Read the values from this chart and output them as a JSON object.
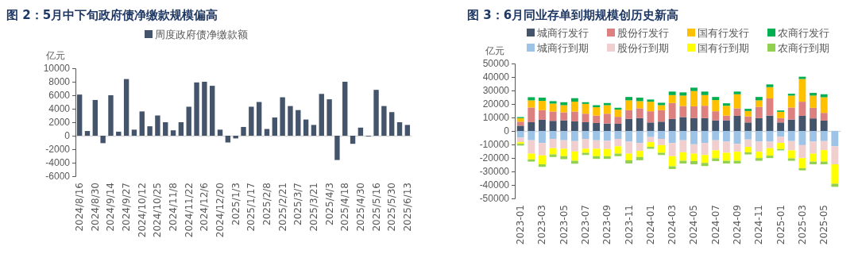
{
  "chart_data": [
    {
      "type": "bar",
      "title": "图 2：5月中下旬政府债净缴款规模偏高",
      "ylabel": "亿元",
      "legend": "top",
      "categories": [
        "2024/8/16",
        null,
        "2024/8/30",
        null,
        "2024/9/14",
        null,
        "2024/9/27",
        null,
        "2024/10/12",
        null,
        "2024/10/25",
        null,
        "2024/11/8",
        null,
        "2024/11/22",
        null,
        "2024/12/6",
        null,
        "2024/12/20",
        null,
        "2025/1/3",
        null,
        "2025/1/17",
        null,
        "2025/2/8",
        null,
        "2025/2/21",
        null,
        "2025/3/7",
        null,
        "2025/3/21",
        null,
        "2025/4/3",
        null,
        "2025/4/18",
        null,
        "2025/4/30",
        null,
        "2025/5/16",
        null,
        "2025/5/30",
        null,
        "2025/6/13"
      ],
      "series": [
        {
          "name": "周度政府债净缴款额",
          "color": "#44546a",
          "values": [
            6100,
            700,
            5300,
            -1100,
            6000,
            600,
            8400,
            900,
            3600,
            1400,
            3000,
            2000,
            800,
            2000,
            4300,
            7900,
            8000,
            7400,
            900,
            -1000,
            -400,
            1300,
            4300,
            5000,
            1000,
            2700,
            5700,
            4400,
            3800,
            2400,
            1600,
            6200,
            5400,
            -3600,
            8000,
            -1200,
            1200,
            -100,
            6800,
            4400,
            3500,
            2000,
            1600
          ]
        }
      ],
      "ylim": [
        -6000,
        10000
      ],
      "yticks": [
        -6000,
        -4000,
        -2000,
        0,
        2000,
        4000,
        6000,
        8000,
        10000
      ]
    },
    {
      "type": "bar",
      "title": "图 3：6月同业存单到期规模创历史新高",
      "ylabel": "亿元",
      "legend": "top",
      "stacked": true,
      "categories": [
        "2023-01",
        null,
        "2023-03",
        null,
        "2023-05",
        null,
        "2023-07",
        null,
        "2023-09",
        null,
        "2023-11",
        null,
        "2024-01",
        null,
        "2024-03",
        null,
        "2024-05",
        null,
        "2024-07",
        null,
        "2024-09",
        null,
        "2024-11",
        null,
        "2025-01",
        null,
        "2025-03",
        null,
        "2025-05",
        null
      ],
      "series": [
        {
          "name": "城商行发行",
          "color": "#44546a",
          "values": [
            3900,
            6500,
            8300,
            7500,
            7900,
            7100,
            6500,
            5900,
            5500,
            5300,
            8900,
            9500,
            6300,
            6900,
            8900,
            10300,
            9500,
            9500,
            7900,
            7900,
            11200,
            6300,
            9500,
            11400,
            6300,
            8500,
            11200,
            9300,
            7700,
            0
          ]
        },
        {
          "name": "股份行发行",
          "color": "#dc8080",
          "values": [
            3000,
            10900,
            7100,
            6900,
            5900,
            7300,
            6300,
            5500,
            7300,
            5200,
            6500,
            7300,
            8300,
            8500,
            11800,
            8200,
            8800,
            9200,
            6700,
            3500,
            5600,
            4500,
            8300,
            12700,
            3200,
            8900,
            10500,
            7900,
            5700,
            0
          ]
        },
        {
          "name": "国有行发行",
          "color": "#ffc000",
          "values": [
            2600,
            5300,
            6900,
            5900,
            5300,
            7300,
            7300,
            6200,
            6300,
            5300,
            7300,
            5300,
            7100,
            3700,
            5900,
            7700,
            11300,
            7900,
            8300,
            7300,
            10400,
            4000,
            4900,
            8400,
            4700,
            8800,
            16800,
            9000,
            11600,
            0
          ]
        },
        {
          "name": "农商行发行",
          "color": "#00b050",
          "values": [
            800,
            2300,
            2400,
            1800,
            2200,
            2600,
            1200,
            1500,
            1600,
            1400,
            2500,
            2600,
            1600,
            1800,
            2600,
            2400,
            2500,
            2600,
            2300,
            1800,
            2000,
            1600,
            2500,
            2000,
            1000,
            1400,
            1700,
            2000,
            2200,
            0
          ]
        },
        {
          "name": "城商行到期",
          "color": "#9dc3e6",
          "values": [
            -4900,
            -6900,
            -8900,
            -5900,
            -6900,
            -7500,
            -5900,
            -6900,
            -7300,
            -5900,
            -7900,
            -8900,
            -4500,
            -5900,
            -8900,
            -6900,
            -9900,
            -8900,
            -6900,
            -7900,
            -9500,
            -6300,
            -7900,
            -7900,
            -4300,
            -7500,
            -10500,
            -7900,
            -7500,
            -11400
          ]
        },
        {
          "name": "股份行到期",
          "color": "#f2cfcf",
          "values": [
            -3400,
            -9900,
            -9200,
            -6900,
            -6300,
            -7700,
            -7300,
            -6300,
            -6100,
            -5500,
            -8900,
            -5900,
            -3800,
            -4600,
            -9800,
            -8900,
            -6900,
            -8900,
            -7500,
            -8300,
            -5900,
            -5500,
            -7500,
            -4900,
            -4600,
            -6900,
            -9600,
            -8900,
            -6700,
            -13300
          ]
        },
        {
          "name": "国有行到期",
          "color": "#ffff00",
          "values": [
            -1200,
            -4300,
            -6600,
            -4600,
            -5500,
            -6900,
            -3000,
            -5500,
            -5300,
            -5400,
            -4900,
            -4500,
            -3500,
            -5700,
            -7500,
            -6300,
            -5500,
            -5900,
            -5900,
            -5900,
            -6700,
            -4000,
            -4700,
            -5500,
            -4500,
            -5900,
            -7500,
            -5900,
            -8500,
            -14400
          ]
        },
        {
          "name": "农商行到期",
          "color": "#92d050",
          "values": [
            -1300,
            -1600,
            -1900,
            -1900,
            -2200,
            -2200,
            -1600,
            -2000,
            -2000,
            -1900,
            -2400,
            -2400,
            -1400,
            -1600,
            -2000,
            -2000,
            -2400,
            -2300,
            -2000,
            -2000,
            -2000,
            -1600,
            -2000,
            -1800,
            -1000,
            -1800,
            -1600,
            -2000,
            -2000,
            -2300
          ]
        }
      ],
      "ylim": [
        -50000,
        50000
      ],
      "yticks": [
        -50000,
        -40000,
        -30000,
        -20000,
        -10000,
        0,
        10000,
        20000,
        30000,
        40000,
        50000
      ]
    }
  ]
}
